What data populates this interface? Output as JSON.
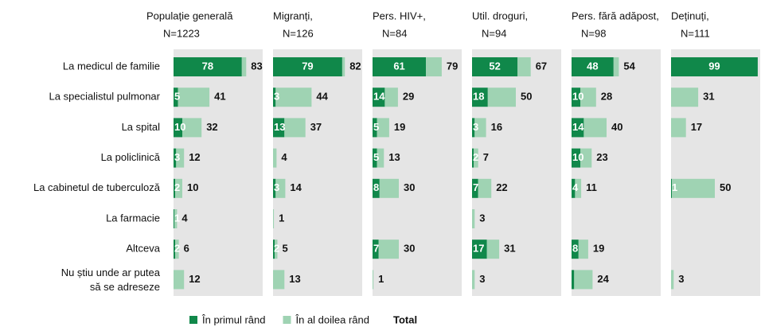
{
  "chart_data": {
    "type": "bar_panels",
    "categories": [
      "La medicul de familie",
      "La specialistul pulmonar",
      "La spital",
      "La policlinică",
      "La cabinetul de tuberculoză",
      "La farmacie",
      "Altceva",
      [
        "Nu știu unde ar putea",
        "să se adreseze"
      ]
    ],
    "series": [
      {
        "name": "În primul rând",
        "color": "#10884a"
      },
      {
        "name": "În al doilea rând",
        "color": "#9fd3b3"
      }
    ],
    "total_label": "Total",
    "xlim": [
      0,
      100
    ],
    "panels": [
      {
        "title": [
          "Populație generală",
          "N=1223"
        ],
        "first": [
          78,
          5,
          10,
          3,
          2,
          1,
          2,
          0
        ],
        "first_labels": [
          "78",
          "5",
          "10",
          "3",
          "2",
          "1",
          "2",
          null
        ],
        "second": [
          5,
          36,
          22,
          9,
          8,
          3,
          4,
          12
        ],
        "totals": [
          83,
          41,
          32,
          12,
          10,
          4,
          6,
          12
        ]
      },
      {
        "title": [
          "Migranți,",
          "N=126"
        ],
        "first": [
          79,
          3,
          13,
          0,
          3,
          0,
          2,
          0
        ],
        "first_labels": [
          "79",
          "3",
          "13",
          null,
          "3",
          null,
          "2",
          null
        ],
        "second": [
          3,
          41,
          24,
          4,
          11,
          1,
          3,
          13
        ],
        "totals": [
          82,
          44,
          37,
          4,
          14,
          1,
          5,
          13
        ]
      },
      {
        "title": [
          "Pers. HIV+,",
          "N=84"
        ],
        "first": [
          61,
          14,
          5,
          5,
          8,
          null,
          7,
          0
        ],
        "first_labels": [
          "61",
          "14",
          "5",
          "5",
          "8",
          null,
          "7",
          null
        ],
        "second": [
          18,
          15,
          14,
          8,
          22,
          null,
          23,
          1
        ],
        "totals": [
          79,
          29,
          19,
          13,
          30,
          null,
          30,
          1
        ]
      },
      {
        "title": [
          "Util. droguri,",
          "N=94"
        ],
        "first": [
          52,
          18,
          3,
          2,
          7,
          0,
          17,
          0
        ],
        "first_labels": [
          "52",
          "18",
          "3",
          "2",
          "7",
          null,
          "17",
          null
        ],
        "second": [
          15,
          32,
          13,
          5,
          15,
          3,
          14,
          3
        ],
        "totals": [
          67,
          50,
          16,
          7,
          22,
          3,
          31,
          3
        ]
      },
      {
        "title": [
          "Pers. fără adăpost,",
          "N=98"
        ],
        "first": [
          48,
          10,
          14,
          10,
          4,
          null,
          8,
          3
        ],
        "first_labels": [
          "48",
          "10",
          "14",
          "10",
          "4",
          null,
          "8",
          null
        ],
        "second": [
          6,
          18,
          26,
          13,
          7,
          null,
          11,
          21
        ],
        "totals": [
          54,
          28,
          40,
          23,
          11,
          null,
          19,
          24
        ]
      },
      {
        "title": [
          "Deținuți,",
          "N=111"
        ],
        "first": [
          99,
          0,
          0,
          null,
          1,
          null,
          null,
          0
        ],
        "first_labels": [
          "99",
          null,
          null,
          null,
          "1",
          null,
          null,
          null
        ],
        "second": [
          0,
          31,
          17,
          null,
          49,
          null,
          null,
          3
        ],
        "totals": [
          99,
          31,
          17,
          null,
          50,
          null,
          null,
          3
        ]
      }
    ]
  }
}
